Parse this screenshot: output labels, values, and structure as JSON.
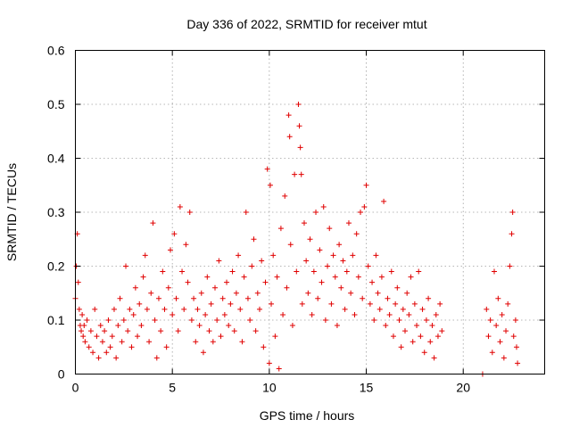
{
  "chart_data": {
    "type": "scatter",
    "title": "Day 336 of 2022, SRMTID for receiver mtut",
    "xlabel": "GPS time / hours",
    "ylabel": "SRMTID / TECUs",
    "xlim": [
      0,
      24.2
    ],
    "ylim": [
      0,
      0.6
    ],
    "xticks": [
      0,
      5,
      10,
      15,
      20
    ],
    "yticks": [
      0,
      0.1,
      0.2,
      0.3,
      0.4,
      0.5,
      0.6
    ],
    "xtick_labels": [
      "0",
      "5",
      "10",
      "15",
      "20"
    ],
    "ytick_labels": [
      "0",
      "0.1",
      "0.2",
      "0.3",
      "0.4",
      "0.5",
      "0.6"
    ],
    "grid": true,
    "marker": "plus",
    "color": "#e00000",
    "series": [
      {
        "name": "SRMTID",
        "points": [
          [
            0.0,
            0.14
          ],
          [
            0.05,
            0.2
          ],
          [
            0.1,
            0.26
          ],
          [
            0.15,
            0.17
          ],
          [
            0.2,
            0.12
          ],
          [
            0.25,
            0.09
          ],
          [
            0.3,
            0.08
          ],
          [
            0.35,
            0.11
          ],
          [
            0.4,
            0.07
          ],
          [
            0.45,
            0.09
          ],
          [
            0.5,
            0.06
          ],
          [
            0.6,
            0.1
          ],
          [
            0.7,
            0.05
          ],
          [
            0.8,
            0.08
          ],
          [
            0.9,
            0.04
          ],
          [
            1.0,
            0.12
          ],
          [
            1.1,
            0.07
          ],
          [
            1.2,
            0.03
          ],
          [
            1.3,
            0.09
          ],
          [
            1.4,
            0.06
          ],
          [
            1.5,
            0.08
          ],
          [
            1.6,
            0.04
          ],
          [
            1.7,
            0.1
          ],
          [
            1.8,
            0.05
          ],
          [
            1.9,
            0.07
          ],
          [
            2.0,
            0.12
          ],
          [
            2.1,
            0.03
          ],
          [
            2.2,
            0.09
          ],
          [
            2.3,
            0.14
          ],
          [
            2.4,
            0.06
          ],
          [
            2.5,
            0.1
          ],
          [
            2.6,
            0.2
          ],
          [
            2.7,
            0.08
          ],
          [
            2.8,
            0.12
          ],
          [
            2.9,
            0.05
          ],
          [
            3.0,
            0.11
          ],
          [
            3.1,
            0.16
          ],
          [
            3.2,
            0.07
          ],
          [
            3.3,
            0.13
          ],
          [
            3.4,
            0.09
          ],
          [
            3.5,
            0.18
          ],
          [
            3.6,
            0.22
          ],
          [
            3.7,
            0.12
          ],
          [
            3.8,
            0.06
          ],
          [
            3.9,
            0.15
          ],
          [
            4.0,
            0.28
          ],
          [
            4.1,
            0.1
          ],
          [
            4.2,
            0.03
          ],
          [
            4.3,
            0.14
          ],
          [
            4.4,
            0.08
          ],
          [
            4.5,
            0.19
          ],
          [
            4.6,
            0.12
          ],
          [
            4.7,
            0.05
          ],
          [
            4.8,
            0.16
          ],
          [
            4.9,
            0.23
          ],
          [
            5.0,
            0.11
          ],
          [
            5.1,
            0.26
          ],
          [
            5.2,
            0.14
          ],
          [
            5.3,
            0.08
          ],
          [
            5.4,
            0.31
          ],
          [
            5.5,
            0.19
          ],
          [
            5.6,
            0.12
          ],
          [
            5.7,
            0.24
          ],
          [
            5.8,
            0.17
          ],
          [
            5.9,
            0.3
          ],
          [
            6.0,
            0.1
          ],
          [
            6.1,
            0.14
          ],
          [
            6.2,
            0.06
          ],
          [
            6.3,
            0.12
          ],
          [
            6.4,
            0.09
          ],
          [
            6.5,
            0.15
          ],
          [
            6.6,
            0.04
          ],
          [
            6.7,
            0.11
          ],
          [
            6.8,
            0.18
          ],
          [
            6.9,
            0.08
          ],
          [
            7.0,
            0.13
          ],
          [
            7.1,
            0.06
          ],
          [
            7.2,
            0.16
          ],
          [
            7.3,
            0.1
          ],
          [
            7.4,
            0.21
          ],
          [
            7.5,
            0.07
          ],
          [
            7.6,
            0.14
          ],
          [
            7.7,
            0.11
          ],
          [
            7.8,
            0.17
          ],
          [
            7.9,
            0.09
          ],
          [
            8.0,
            0.13
          ],
          [
            8.1,
            0.19
          ],
          [
            8.2,
            0.08
          ],
          [
            8.3,
            0.15
          ],
          [
            8.4,
            0.22
          ],
          [
            8.5,
            0.12
          ],
          [
            8.6,
            0.06
          ],
          [
            8.7,
            0.18
          ],
          [
            8.8,
            0.3
          ],
          [
            8.9,
            0.14
          ],
          [
            9.0,
            0.1
          ],
          [
            9.1,
            0.2
          ],
          [
            9.2,
            0.25
          ],
          [
            9.3,
            0.08
          ],
          [
            9.4,
            0.15
          ],
          [
            9.5,
            0.12
          ],
          [
            9.6,
            0.21
          ],
          [
            9.7,
            0.05
          ],
          [
            9.8,
            0.17
          ],
          [
            9.9,
            0.38
          ],
          [
            10.0,
            0.02
          ],
          [
            10.05,
            0.35
          ],
          [
            10.1,
            0.13
          ],
          [
            10.2,
            0.22
          ],
          [
            10.3,
            0.07
          ],
          [
            10.4,
            0.18
          ],
          [
            10.5,
            0.01
          ],
          [
            10.6,
            0.27
          ],
          [
            10.7,
            0.11
          ],
          [
            10.8,
            0.33
          ],
          [
            10.9,
            0.16
          ],
          [
            11.0,
            0.48
          ],
          [
            11.05,
            0.44
          ],
          [
            11.1,
            0.24
          ],
          [
            11.2,
            0.09
          ],
          [
            11.3,
            0.37
          ],
          [
            11.4,
            0.19
          ],
          [
            11.5,
            0.5
          ],
          [
            11.55,
            0.46
          ],
          [
            11.6,
            0.42
          ],
          [
            11.65,
            0.37
          ],
          [
            11.7,
            0.13
          ],
          [
            11.8,
            0.28
          ],
          [
            11.9,
            0.21
          ],
          [
            12.0,
            0.15
          ],
          [
            12.1,
            0.25
          ],
          [
            12.2,
            0.11
          ],
          [
            12.3,
            0.19
          ],
          [
            12.4,
            0.3
          ],
          [
            12.5,
            0.14
          ],
          [
            12.6,
            0.23
          ],
          [
            12.7,
            0.17
          ],
          [
            12.8,
            0.31
          ],
          [
            12.9,
            0.1
          ],
          [
            13.0,
            0.2
          ],
          [
            13.1,
            0.27
          ],
          [
            13.2,
            0.13
          ],
          [
            13.3,
            0.22
          ],
          [
            13.4,
            0.18
          ],
          [
            13.5,
            0.09
          ],
          [
            13.6,
            0.24
          ],
          [
            13.7,
            0.16
          ],
          [
            13.8,
            0.21
          ],
          [
            13.9,
            0.12
          ],
          [
            14.0,
            0.19
          ],
          [
            14.1,
            0.28
          ],
          [
            14.2,
            0.15
          ],
          [
            14.3,
            0.22
          ],
          [
            14.4,
            0.11
          ],
          [
            14.5,
            0.26
          ],
          [
            14.6,
            0.18
          ],
          [
            14.7,
            0.3
          ],
          [
            14.8,
            0.14
          ],
          [
            14.9,
            0.31
          ],
          [
            15.0,
            0.35
          ],
          [
            15.1,
            0.2
          ],
          [
            15.2,
            0.13
          ],
          [
            15.3,
            0.17
          ],
          [
            15.4,
            0.1
          ],
          [
            15.5,
            0.22
          ],
          [
            15.6,
            0.15
          ],
          [
            15.7,
            0.12
          ],
          [
            15.8,
            0.18
          ],
          [
            15.9,
            0.32
          ],
          [
            16.0,
            0.09
          ],
          [
            16.1,
            0.14
          ],
          [
            16.2,
            0.11
          ],
          [
            16.3,
            0.19
          ],
          [
            16.4,
            0.07
          ],
          [
            16.5,
            0.13
          ],
          [
            16.6,
            0.16
          ],
          [
            16.7,
            0.1
          ],
          [
            16.8,
            0.05
          ],
          [
            16.9,
            0.12
          ],
          [
            17.0,
            0.08
          ],
          [
            17.1,
            0.15
          ],
          [
            17.2,
            0.11
          ],
          [
            17.3,
            0.18
          ],
          [
            17.4,
            0.06
          ],
          [
            17.5,
            0.13
          ],
          [
            17.6,
            0.09
          ],
          [
            17.7,
            0.19
          ],
          [
            17.8,
            0.07
          ],
          [
            17.9,
            0.12
          ],
          [
            18.0,
            0.04
          ],
          [
            18.1,
            0.1
          ],
          [
            18.2,
            0.14
          ],
          [
            18.3,
            0.06
          ],
          [
            18.4,
            0.09
          ],
          [
            18.5,
            0.03
          ],
          [
            18.6,
            0.11
          ],
          [
            18.7,
            0.07
          ],
          [
            18.8,
            0.13
          ],
          [
            18.9,
            0.08
          ],
          [
            21.0,
            0.0
          ],
          [
            21.2,
            0.12
          ],
          [
            21.3,
            0.07
          ],
          [
            21.4,
            0.1
          ],
          [
            21.5,
            0.04
          ],
          [
            21.6,
            0.19
          ],
          [
            21.7,
            0.09
          ],
          [
            21.8,
            0.14
          ],
          [
            21.9,
            0.06
          ],
          [
            22.0,
            0.11
          ],
          [
            22.1,
            0.03
          ],
          [
            22.2,
            0.08
          ],
          [
            22.3,
            0.13
          ],
          [
            22.4,
            0.2
          ],
          [
            22.5,
            0.26
          ],
          [
            22.55,
            0.3
          ],
          [
            22.6,
            0.07
          ],
          [
            22.7,
            0.1
          ],
          [
            22.75,
            0.05
          ],
          [
            22.8,
            0.02
          ]
        ]
      }
    ]
  }
}
